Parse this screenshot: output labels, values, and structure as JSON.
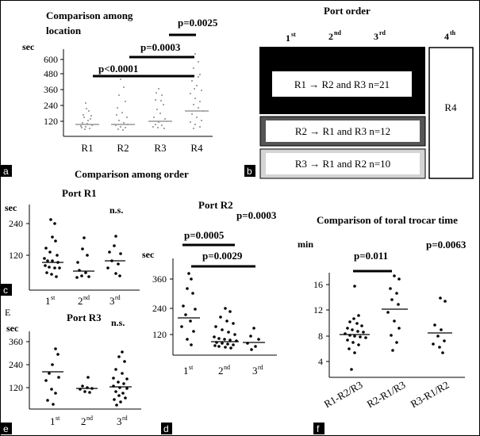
{
  "panel_labels": {
    "a": "a",
    "b": "b",
    "c": "c",
    "d": "d",
    "e": "e",
    "f": "f"
  },
  "panel_a": {
    "title": [
      "Comparison among",
      "location"
    ],
    "ylabel": "sec",
    "yticks": [
      "600",
      "480",
      "360",
      "240",
      "120"
    ],
    "categories": [
      "R1",
      "R2",
      "R3",
      "R4"
    ],
    "significance": [
      "p<0.0001",
      "p=0.0003",
      "p=0.0025"
    ]
  },
  "panel_b": {
    "title": "Port order",
    "columns": [
      "1",
      "st",
      "2",
      "nd",
      "3",
      "rd",
      "4",
      "th"
    ],
    "box_r1": "R1 → R2 and R3 n=21",
    "box_r2": "R2 → R1 and R3 n=12",
    "box_r3": "R3 → R1 and R2 n=10",
    "box_r4": "R4"
  },
  "section_title": "Comparison among order",
  "panel_c": {
    "title": "Port R1",
    "ylabel": "sec",
    "yticks": [
      "240",
      "120"
    ],
    "ns": "n.s.",
    "x": [
      [
        "1",
        "st"
      ],
      [
        "2",
        "nd"
      ],
      [
        "3",
        "rd"
      ]
    ]
  },
  "panel_d": {
    "title": "Port R2",
    "ylabel": "sec",
    "yticks": [
      "360",
      "240",
      "120"
    ],
    "significance": [
      "p=0.0003",
      "p=0.0005",
      "p=0.0029"
    ],
    "x": [
      [
        "1",
        "st"
      ],
      [
        "2",
        "nd"
      ],
      [
        "3",
        "rd"
      ]
    ]
  },
  "panel_e": {
    "corner": "E",
    "title": "Port R3",
    "ylabel": "sec",
    "yticks": [
      "360",
      "240",
      "120"
    ],
    "ns": "n.s.",
    "x": [
      [
        "1",
        "st"
      ],
      [
        "2",
        "nd"
      ],
      [
        "3",
        "rd"
      ]
    ]
  },
  "panel_f": {
    "title": "Comparison of toral trocar time",
    "ylabel": "min",
    "yticks": [
      "16",
      "12",
      "8",
      "4"
    ],
    "significance": [
      "p=0.011",
      "p=0.0063"
    ],
    "categories": [
      "R1-R2/R3",
      "R2-R1/R3",
      "R3-R1/R2"
    ]
  },
  "colors": {
    "black": "#000000",
    "dark_gray": "#555555",
    "light_gray": "#d4d4d4",
    "scatter": "#888888"
  }
}
